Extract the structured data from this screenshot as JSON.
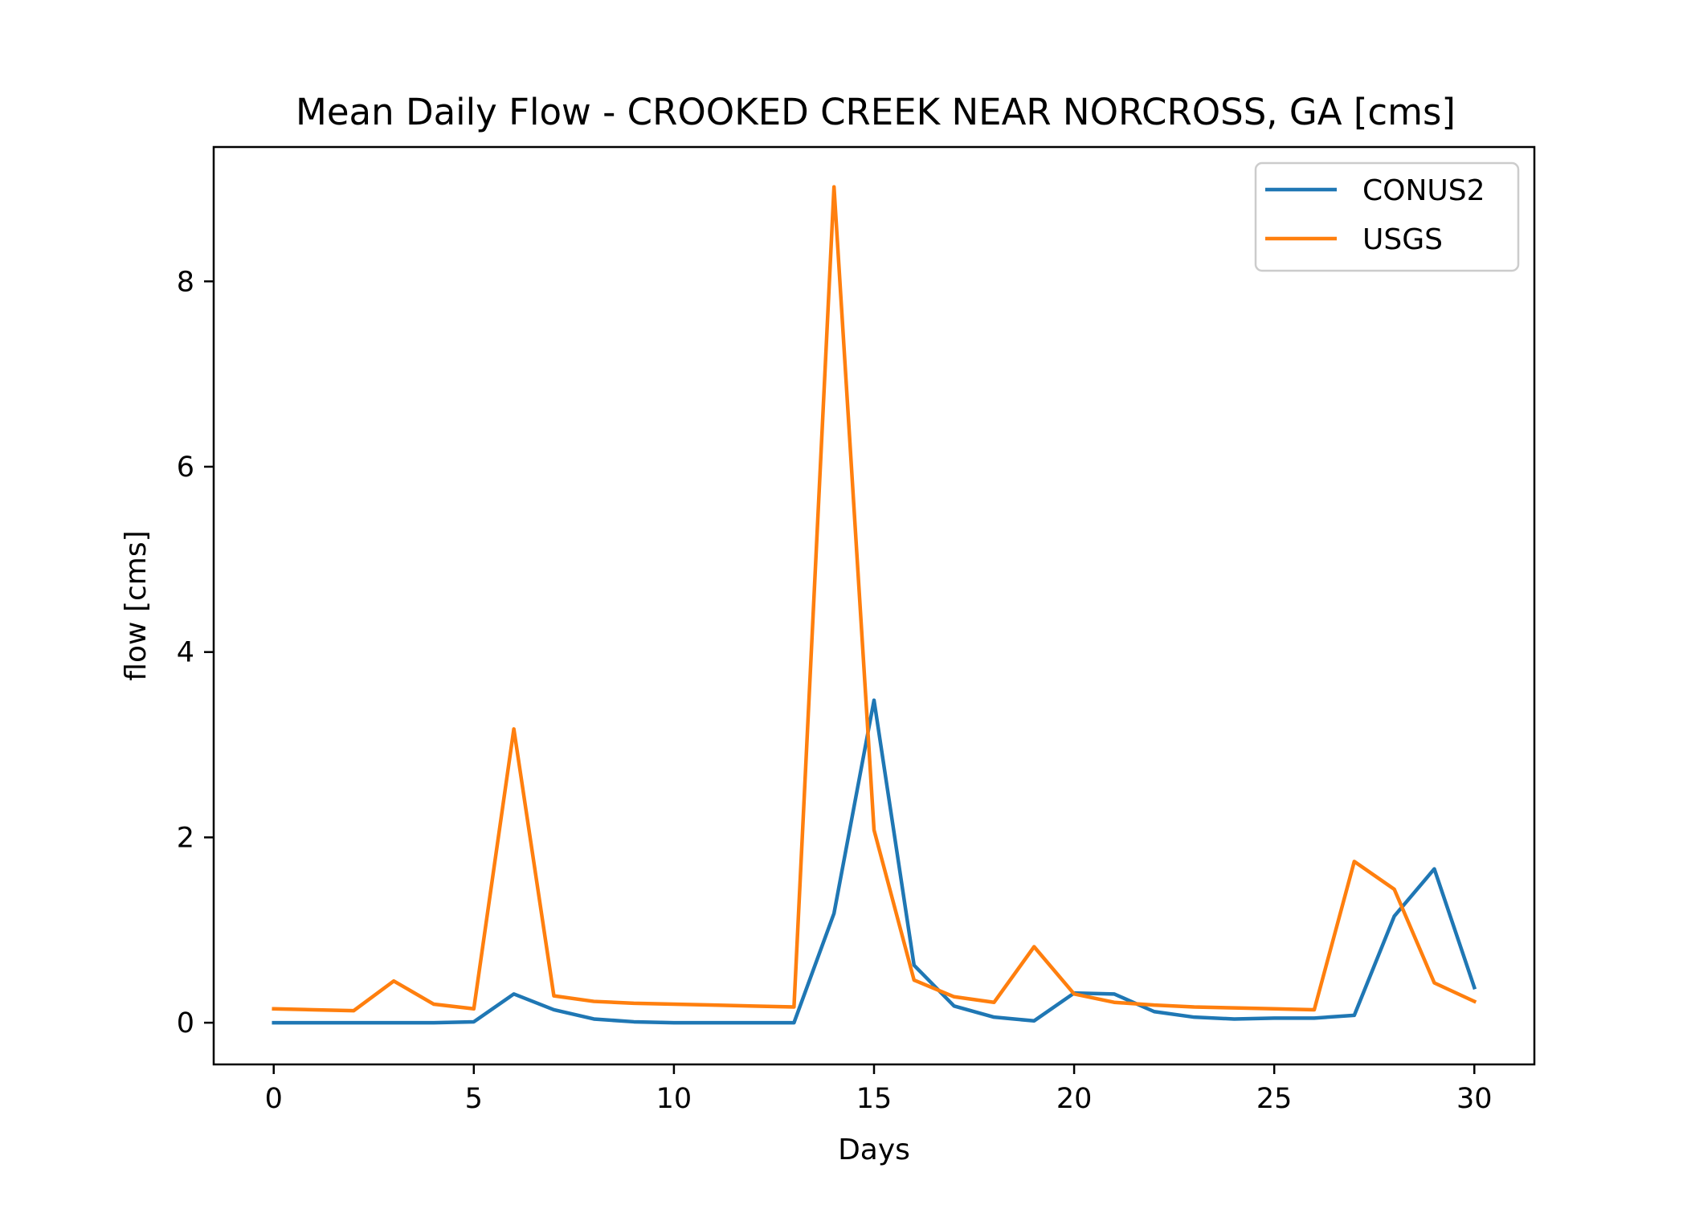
{
  "chart_data": {
    "type": "line",
    "title": "Mean Daily Flow - CROOKED CREEK NEAR NORCROSS, GA [cms]",
    "xlabel": "Days",
    "ylabel": "flow [cms]",
    "xlim": [
      -1.5,
      31.5
    ],
    "ylim": [
      -0.45,
      9.45
    ],
    "xticks": [
      0,
      5,
      10,
      15,
      20,
      25,
      30
    ],
    "xtick_labels": [
      "0",
      "5",
      "10",
      "15",
      "20",
      "25",
      "30"
    ],
    "yticks": [
      0,
      2,
      4,
      6,
      8
    ],
    "ytick_labels": [
      "0",
      "2",
      "4",
      "6",
      "8"
    ],
    "grid": false,
    "legend_position": "top-right",
    "x": [
      0,
      1,
      2,
      3,
      4,
      5,
      6,
      7,
      8,
      9,
      10,
      11,
      12,
      13,
      14,
      15,
      16,
      17,
      18,
      19,
      20,
      21,
      22,
      23,
      24,
      25,
      26,
      27,
      28,
      29,
      30
    ],
    "series": [
      {
        "name": "CONUS2",
        "color": "#1f77b4",
        "values": [
          0.0,
          0.0,
          0.0,
          0.0,
          0.0,
          0.01,
          0.31,
          0.14,
          0.04,
          0.01,
          0.0,
          0.0,
          0.0,
          0.0,
          1.18,
          3.48,
          0.62,
          0.18,
          0.06,
          0.02,
          0.32,
          0.31,
          0.12,
          0.06,
          0.04,
          0.05,
          0.05,
          0.08,
          1.15,
          1.66,
          0.38
        ]
      },
      {
        "name": "USGS",
        "color": "#ff7f0e",
        "values": [
          0.15,
          0.14,
          0.13,
          0.45,
          0.2,
          0.15,
          3.17,
          0.29,
          0.23,
          0.21,
          0.2,
          0.19,
          0.18,
          0.17,
          9.02,
          2.08,
          0.46,
          0.28,
          0.22,
          0.82,
          0.31,
          0.22,
          0.19,
          0.17,
          0.16,
          0.15,
          0.14,
          1.74,
          1.44,
          0.43,
          0.23
        ]
      }
    ]
  }
}
